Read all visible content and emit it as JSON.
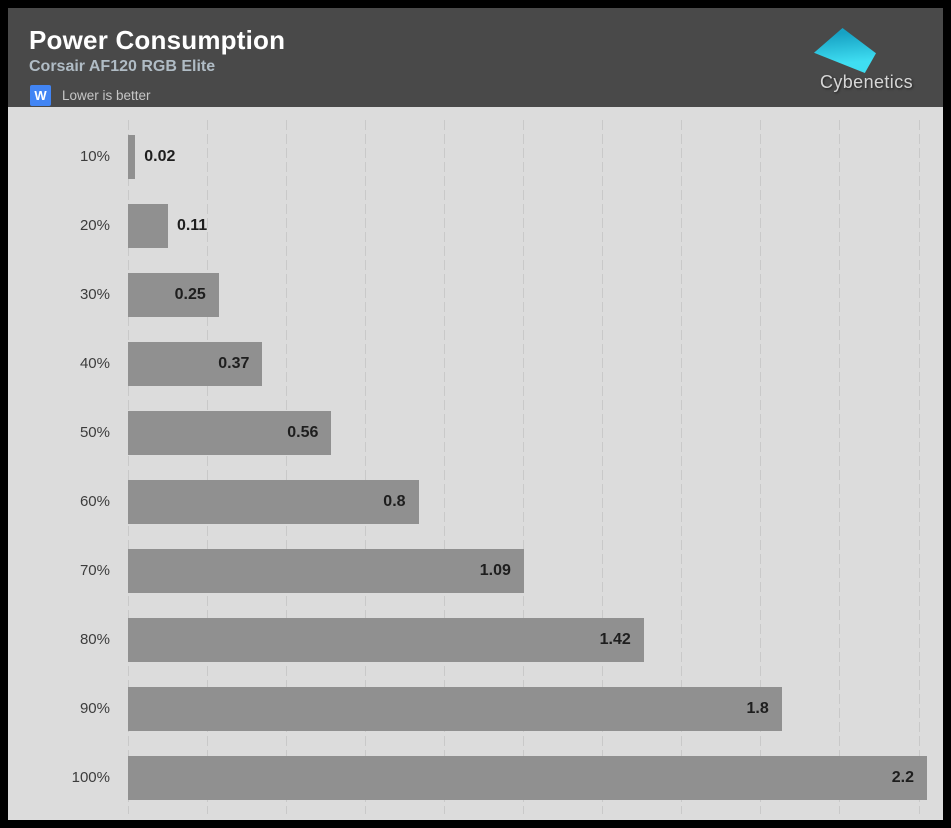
{
  "header": {
    "title": "Power Consumption",
    "subtitle": "Corsair AF120 RGB Elite",
    "unit_badge": "W",
    "note": "Lower is better",
    "brand": "Cybenetics"
  },
  "colors": {
    "frame": "#000000",
    "header_bg": "#494949",
    "title": "#ffffff",
    "subtitle": "#b0bcc5",
    "badge_bg": "#4285f4",
    "note": "#c6c6c6",
    "chart_bg": "#dcdcdc",
    "gridline": "#c9c9c9",
    "bar": "#909090",
    "category_label": "#3c3c3c",
    "value_label": "#1e1e1e",
    "logo_teal_top": "#17a2c4",
    "logo_teal_bottom": "#3fdef2",
    "brand_text": "#d6d6d6"
  },
  "chart_data": {
    "type": "bar",
    "orientation": "horizontal",
    "title": "Power Consumption",
    "subtitle": "Corsair AF120 RGB Elite",
    "unit": "W",
    "note": "Lower is better",
    "categories": [
      "10%",
      "20%",
      "30%",
      "40%",
      "50%",
      "60%",
      "70%",
      "80%",
      "90%",
      "100%"
    ],
    "values": [
      0.02,
      0.11,
      0.25,
      0.37,
      0.56,
      0.8,
      1.09,
      1.42,
      1.8,
      2.2
    ],
    "xlabel": "",
    "ylabel": "",
    "xlim": [
      0,
      2.2
    ],
    "grid": true,
    "gridline_count": 11,
    "legend": false,
    "value_labels": true
  }
}
